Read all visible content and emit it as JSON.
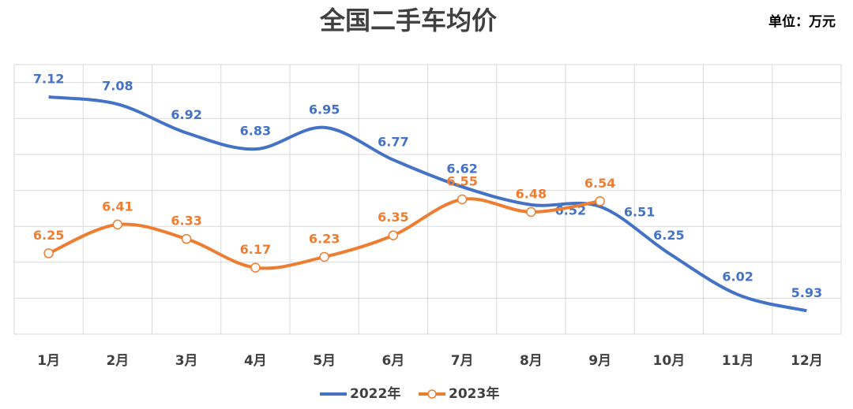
{
  "chart_data": {
    "type": "line",
    "title": "全国二手车均价",
    "unit": "单位：万元",
    "categories": [
      "1月",
      "2月",
      "3月",
      "4月",
      "5月",
      "6月",
      "7月",
      "8月",
      "9月",
      "10月",
      "11月",
      "12月"
    ],
    "series": [
      {
        "name": "2022年",
        "color": "#4472c4",
        "values": [
          7.12,
          7.08,
          6.92,
          6.83,
          6.95,
          6.77,
          6.62,
          6.52,
          6.51,
          6.25,
          6.02,
          5.93
        ]
      },
      {
        "name": "2023年",
        "color": "#ed7d31",
        "values": [
          6.25,
          6.41,
          6.33,
          6.17,
          6.23,
          6.35,
          6.55,
          6.48,
          6.54,
          null,
          null,
          null
        ]
      }
    ],
    "ylim": [
      5.8,
      7.3
    ],
    "yticks": [
      5.8,
      6.0,
      6.2,
      6.4,
      6.6,
      6.8,
      7.0,
      7.2
    ],
    "grid": true,
    "smooth": true
  }
}
